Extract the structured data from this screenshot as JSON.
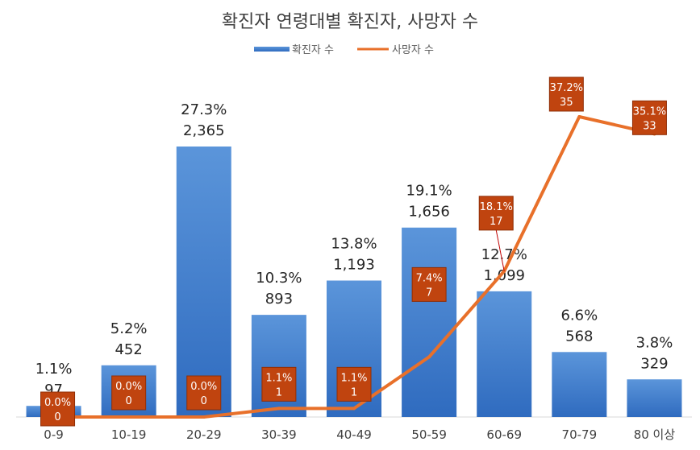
{
  "chart_data": {
    "type": "bar",
    "title": "확진자 연령대별 확진자, 사망자 수",
    "categories": [
      "0-9",
      "10-19",
      "20-29",
      "30-39",
      "40-49",
      "50-59",
      "60-69",
      "70-79",
      "80 이상"
    ],
    "series": [
      {
        "name": "확진자 수",
        "chart": "bar",
        "values": [
          97,
          452,
          2365,
          893,
          1193,
          1656,
          1099,
          568,
          329
        ],
        "value_labels": [
          "97",
          "452",
          "2,365",
          "893",
          "1,193",
          "1,656",
          "1,099",
          "568",
          "329"
        ],
        "percent_labels": [
          "1.1%",
          "5.2%",
          "27.3%",
          "10.3%",
          "13.8%",
          "19.1%",
          "12.7%",
          "6.6%",
          "3.8%"
        ]
      },
      {
        "name": "사망자 수",
        "chart": "line",
        "values": [
          0,
          0,
          0,
          1,
          1,
          7,
          17,
          35,
          33
        ],
        "value_labels": [
          "0",
          "0",
          "0",
          "1",
          "1",
          "7",
          "17",
          "35",
          "33"
        ],
        "percent_labels": [
          "0.0%",
          "0.0%",
          "0.0%",
          "1.1%",
          "1.1%",
          "7.4%",
          "18.1%",
          "37.2%",
          "35.1%"
        ]
      }
    ],
    "legend_position": "top",
    "bar_ylim": [
      0,
      2800
    ],
    "line_ylim": [
      0,
      39
    ],
    "grid": false,
    "colors": {
      "bar": "#4a86d0",
      "bar_dark": "#2f6bbf",
      "line": "#e8702a",
      "label_box": "#c0440f",
      "label_box_border": "#8f2e06"
    }
  }
}
